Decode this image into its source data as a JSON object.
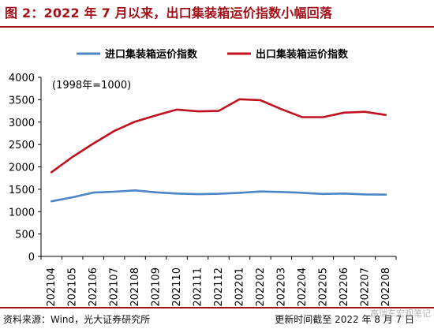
{
  "title": "图 2：2022 年 7 月以来，出口集装箱运价指数小幅回落",
  "source": "资料来源：Wind，光大证券研究所",
  "cutoff": "更新时间截至 2022 年 8 月 7 日",
  "watermark": "高瑞东宏观笔记",
  "chart_data": {
    "type": "line",
    "annotation": "(1998年=1000)",
    "x": [
      "202104",
      "202105",
      "202106",
      "202107",
      "202108",
      "202109",
      "202110",
      "202111",
      "202112",
      "202201",
      "202202",
      "202203",
      "202204",
      "202205",
      "202206",
      "202207",
      "202208"
    ],
    "y_ticks": [
      0,
      500,
      1000,
      1500,
      2000,
      2500,
      3000,
      3500,
      4000
    ],
    "ylim": [
      0,
      4000
    ],
    "legend_position": "top",
    "grid": false,
    "series": [
      {
        "name": "进口集装箱运价指数",
        "color": "#4a86c5",
        "values": [
          1230,
          1320,
          1425,
          1445,
          1475,
          1430,
          1405,
          1390,
          1400,
          1420,
          1450,
          1440,
          1420,
          1395,
          1405,
          1385,
          1380
        ]
      },
      {
        "name": "出口集装箱运价指数",
        "color": "#c0111e",
        "values": [
          1880,
          2220,
          2520,
          2800,
          3010,
          3150,
          3280,
          3240,
          3250,
          3510,
          3490,
          3290,
          3110,
          3110,
          3210,
          3230,
          3160
        ]
      }
    ]
  }
}
